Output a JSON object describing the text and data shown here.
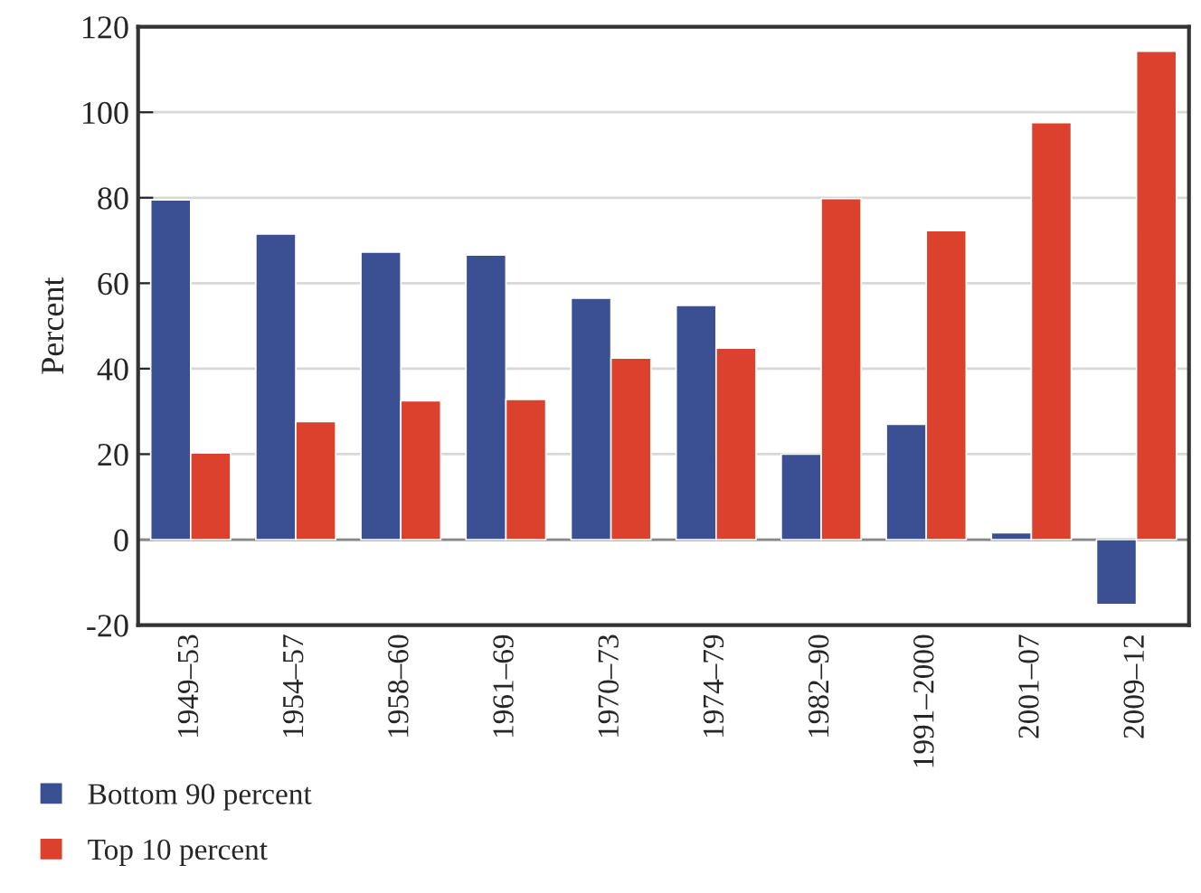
{
  "chart_data": {
    "type": "bar",
    "ylabel": "Percent",
    "categories": [
      "1949–53",
      "1954–57",
      "1958–60",
      "1961–69",
      "1970–73",
      "1974–79",
      "1982–90",
      "1991–2000",
      "2001–07",
      "2009–12"
    ],
    "series": [
      {
        "name": "Bottom 90 percent",
        "color": "#3a5093",
        "values": [
          79.5,
          71.5,
          67.3,
          66.6,
          56.5,
          54.8,
          20.0,
          27.0,
          1.6,
          -15.2
        ]
      },
      {
        "name": "Top 10 percent",
        "color": "#db412c",
        "values": [
          20.3,
          27.6,
          32.5,
          32.8,
          42.5,
          44.8,
          79.8,
          72.3,
          97.6,
          114.3
        ]
      }
    ],
    "ylim": [
      -20,
      120
    ],
    "yticks": [
      -20,
      0,
      20,
      40,
      60,
      80,
      100,
      120
    ],
    "grid": "y",
    "legend": "bottom left"
  }
}
